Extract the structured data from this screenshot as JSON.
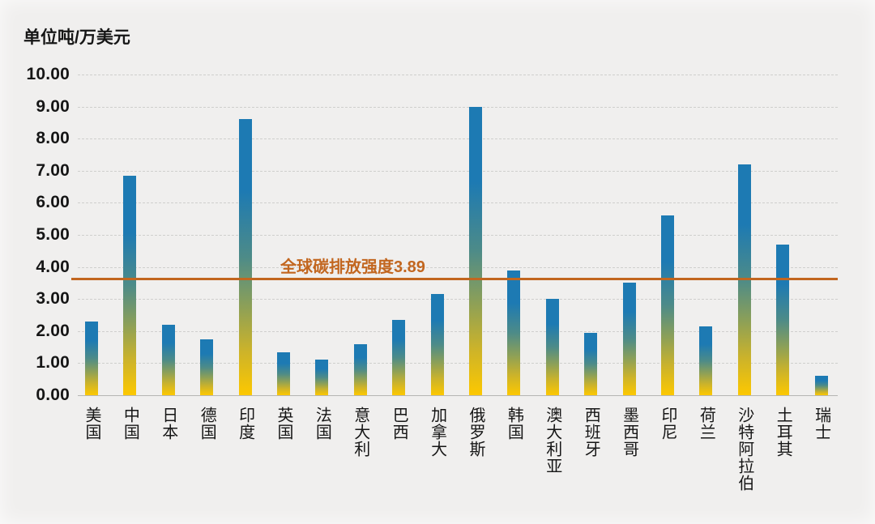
{
  "colors": {
    "background": "#f0efee",
    "text": "#161616",
    "grid": "#cfcfcd",
    "axis_line": "#b5b5b3",
    "reference": "#c2661f",
    "bar_top": "#1d7ab3",
    "bar_bottom": "#fdc800"
  },
  "chart_data": {
    "type": "bar",
    "title": "",
    "ylabel": "单位吨/万美元",
    "xlabel": "",
    "ylim": [
      0,
      10
    ],
    "ytick_step": 1,
    "ytick_labels": [
      "10.00",
      "9.00",
      "8.00",
      "7.00",
      "6.00",
      "5.00",
      "4.00",
      "3.00",
      "2.00",
      "1.00",
      "0.00"
    ],
    "grid": "horizontal-dashed",
    "legend": "none",
    "categories": [
      "美国",
      "中国",
      "日本",
      "德国",
      "印度",
      "英国",
      "法国",
      "意大利",
      "巴西",
      "加拿大",
      "俄罗斯",
      "韩国",
      "澳大利亚",
      "西班牙",
      "墨西哥",
      "印尼",
      "荷兰",
      "沙特阿拉伯",
      "土耳其",
      "瑞士"
    ],
    "values": [
      2.3,
      6.85,
      2.2,
      1.75,
      8.6,
      1.35,
      1.1,
      1.6,
      2.35,
      3.15,
      9.0,
      3.9,
      3.0,
      1.95,
      3.5,
      5.6,
      2.15,
      7.2,
      4.7,
      0.6
    ],
    "reference_line": {
      "label": "全球碳排放强度3.89",
      "value": 3.89,
      "display_position": 3.64,
      "color": "#c2661f"
    },
    "bar_gradient_stops": [
      {
        "pos": 0,
        "color": "#1d7ab3"
      },
      {
        "pos": 26,
        "color": "#1d7ab3"
      },
      {
        "pos": 50,
        "color": "#4d8b88"
      },
      {
        "pos": 68,
        "color": "#8da057"
      },
      {
        "pos": 84,
        "color": "#ccb32a"
      },
      {
        "pos": 100,
        "color": "#fdc800"
      }
    ]
  }
}
